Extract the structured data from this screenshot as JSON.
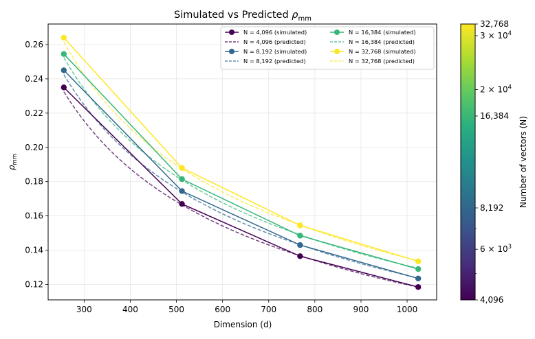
{
  "chart_data": {
    "type": "line",
    "title_prefix": "Simulated vs Predicted ",
    "title_symbol": "ρ",
    "title_sub": "mm",
    "xlabel": "Dimension (d)",
    "ylabel_symbol": "ρ",
    "ylabel_sub": "mm",
    "xlim": [
      222,
      1064
    ],
    "ylim": [
      0.111,
      0.272
    ],
    "xticks": [
      300,
      400,
      500,
      600,
      700,
      800,
      900,
      1000
    ],
    "yticks": [
      0.12,
      0.14,
      0.16,
      0.18,
      0.2,
      0.22,
      0.24,
      0.26
    ],
    "ytick_labels": [
      "0.12",
      "0.14",
      "0.16",
      "0.18",
      "0.20",
      "0.22",
      "0.24",
      "0.26"
    ],
    "grid": true,
    "legend_position": "top-right",
    "x": [
      256,
      512,
      768,
      1024
    ],
    "series": [
      {
        "name": "N = 4,096 (simulated)",
        "color": "#440154",
        "style": "solid",
        "values": [
          0.235,
          0.167,
          0.1365,
          0.1185
        ]
      },
      {
        "name": "N = 4,096 (predicted)",
        "color": "#440154",
        "style": "dashed",
        "values": [
          0.2325,
          0.1665,
          0.1368,
          0.1184
        ]
      },
      {
        "name": "N = 8,192 (simulated)",
        "color": "#31688e",
        "style": "solid",
        "values": [
          0.245,
          0.1745,
          0.143,
          0.1235
        ]
      },
      {
        "name": "N = 8,192 (predicted)",
        "color": "#31688e",
        "style": "dashed",
        "values": [
          0.2425,
          0.174,
          0.1432,
          0.1238
        ]
      },
      {
        "name": "N = 16,384 (simulated)",
        "color": "#35b779",
        "style": "solid",
        "values": [
          0.2545,
          0.1815,
          0.1485,
          0.129
        ]
      },
      {
        "name": "N = 16,384 (predicted)",
        "color": "#35b779",
        "style": "dashed",
        "values": [
          0.2525,
          0.181,
          0.149,
          0.1295
        ]
      },
      {
        "name": "N = 32,768 (simulated)",
        "color": "#fde725",
        "style": "solid",
        "values": [
          0.264,
          0.188,
          0.1545,
          0.1335
        ]
      },
      {
        "name": "N = 32,768 (predicted)",
        "color": "#fde725",
        "style": "dashed",
        "values": [
          0.2615,
          0.1875,
          0.1548,
          0.1338
        ]
      }
    ],
    "legend_items": [
      "N = 4,096 (simulated)",
      "N = 16,384 (simulated)",
      "N = 4,096 (predicted)",
      "N = 16,384 (predicted)",
      "N = 8,192 (simulated)",
      "N = 32,768 (simulated)",
      "N = 8,192 (predicted)",
      "N = 32,768 (predicted)"
    ],
    "colorbar": {
      "label": "Number of vectors (N)",
      "scale": "log",
      "range": [
        4096,
        32768
      ],
      "ticks": [
        {
          "value": 4096,
          "label": "4,096"
        },
        {
          "value": 8192,
          "label": "8,192"
        },
        {
          "value": 16384,
          "label": "16,384"
        },
        {
          "value": 32768,
          "label": "32,768"
        }
      ],
      "sci_ticks": [
        {
          "value": 6000,
          "mantissa": "6 × 10",
          "exp": "3"
        },
        {
          "value": 20000,
          "mantissa": "2 × 10",
          "exp": "4"
        },
        {
          "value": 30000,
          "mantissa": "3 × 10",
          "exp": "4"
        }
      ],
      "minor_ticks": [
        5000,
        7000
      ]
    }
  }
}
